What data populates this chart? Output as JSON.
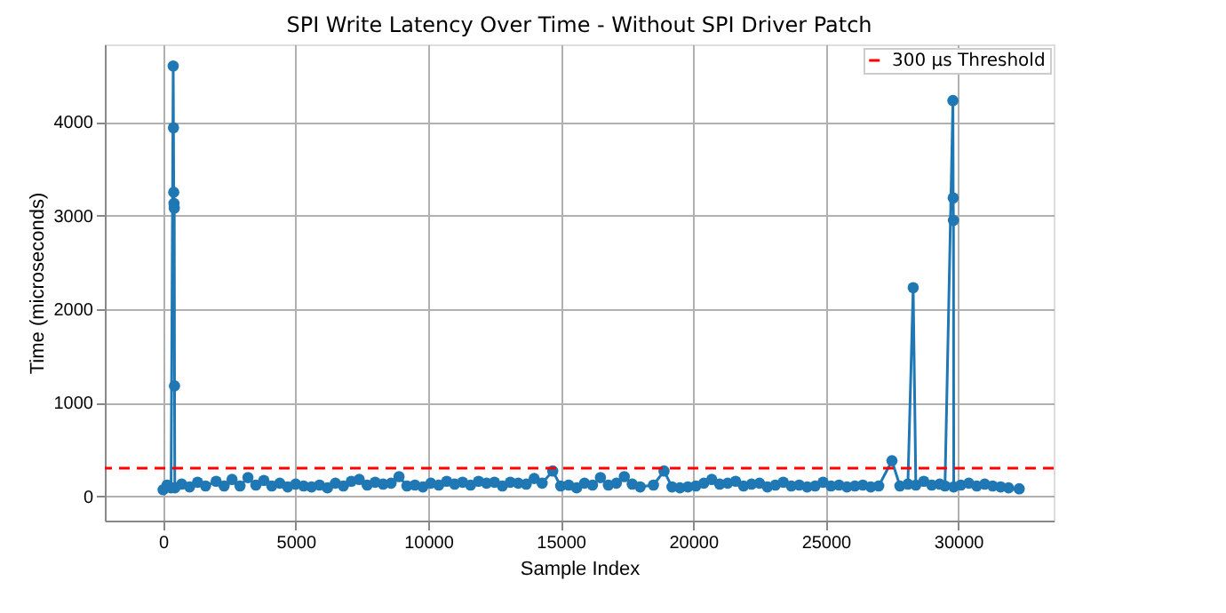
{
  "chart_data": {
    "type": "line",
    "title": "SPI Write Latency Over Time - Without SPI Driver Patch",
    "xlabel": "Sample Index",
    "ylabel": "Time (microseconds)",
    "x": [
      0,
      150,
      300,
      380,
      390,
      400,
      410,
      420,
      430,
      440,
      700,
      1000,
      1300,
      1600,
      2000,
      2300,
      2600,
      2900,
      3200,
      3500,
      3800,
      4100,
      4400,
      4700,
      5000,
      5300,
      5600,
      5900,
      6200,
      6500,
      6800,
      7100,
      7400,
      7700,
      8000,
      8300,
      8600,
      8900,
      9200,
      9500,
      9800,
      10100,
      10400,
      10700,
      11000,
      11300,
      11600,
      11900,
      12200,
      12500,
      12800,
      13100,
      13400,
      13700,
      14000,
      14300,
      14700,
      15000,
      15300,
      15600,
      15900,
      16200,
      16500,
      16800,
      17100,
      17400,
      17700,
      18000,
      18500,
      18900,
      19200,
      19500,
      19800,
      20100,
      20400,
      20700,
      21000,
      21300,
      21600,
      21900,
      22200,
      22500,
      22800,
      23100,
      23400,
      23700,
      24000,
      24300,
      24600,
      24900,
      25200,
      25500,
      25800,
      26100,
      26400,
      26700,
      27000,
      27500,
      27800,
      28100,
      28300,
      28400,
      28700,
      29000,
      29300,
      29500,
      29800,
      29810,
      29820,
      29830,
      30100,
      30400,
      30700,
      31000,
      31300,
      31600,
      31900,
      32300
    ],
    "series": [
      {
        "color": "#1f77b4",
        "values": [
          70,
          120,
          90,
          4600,
          3940,
          3250,
          3130,
          3080,
          1180,
          90,
          130,
          100,
          150,
          110,
          160,
          110,
          180,
          110,
          200,
          120,
          170,
          110,
          140,
          100,
          130,
          110,
          100,
          120,
          90,
          140,
          110,
          160,
          180,
          120,
          150,
          130,
          140,
          210,
          110,
          120,
          100,
          140,
          120,
          160,
          130,
          150,
          120,
          160,
          140,
          150,
          110,
          150,
          140,
          130,
          190,
          140,
          270,
          110,
          120,
          90,
          140,
          120,
          200,
          120,
          140,
          210,
          130,
          100,
          120,
          270,
          100,
          90,
          100,
          110,
          140,
          180,
          130,
          140,
          160,
          110,
          130,
          140,
          100,
          120,
          150,
          110,
          120,
          100,
          110,
          150,
          110,
          120,
          100,
          110,
          120,
          100,
          110,
          380,
          110,
          130,
          2230,
          120,
          160,
          120,
          130,
          110,
          4230,
          3190,
          2950,
          100,
          120,
          140,
          110,
          130,
          110,
          100,
          90,
          80
        ]
      }
    ],
    "xlim": [
      -2200,
      33600
    ],
    "ylim": [
      -260,
      4830
    ],
    "xticks": [
      0,
      5000,
      10000,
      15000,
      20000,
      25000,
      30000
    ],
    "yticks": [
      0,
      1000,
      2000,
      3000,
      4000
    ],
    "ref_lines": [
      {
        "axis": "y",
        "value": 300,
        "label": "300 µs Threshold",
        "color": "#ff0000",
        "line_style": "dashed"
      }
    ],
    "grid": true,
    "legend": "top right",
    "marker": "circle",
    "line_style": "solid"
  }
}
